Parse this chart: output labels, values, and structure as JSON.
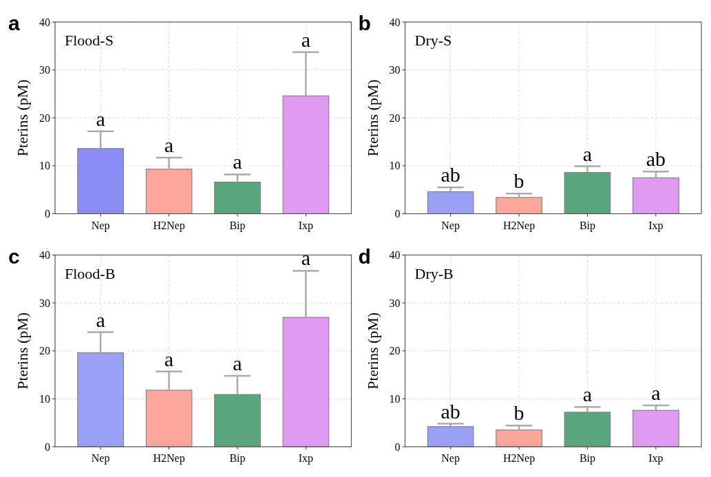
{
  "chart_data": [
    {
      "type": "bar",
      "title": "Flood-S",
      "ylabel": "Pterins (pM)",
      "categories": [
        "Nep",
        "H2Nep",
        "Bip",
        "Ixp"
      ],
      "values": [
        13.6,
        9.3,
        6.6,
        24.6
      ],
      "colors": [
        "#8c8cf5",
        "#fca59a",
        "#5aa67c",
        "#e09bf0"
      ],
      "errors": [
        [
          13.6,
          17.2
        ],
        [
          9.3,
          11.7
        ],
        [
          6.6,
          8.2
        ],
        [
          24.6,
          33.7
        ]
      ],
      "ylim": [
        0,
        40
      ],
      "yticks": [
        0,
        10,
        20,
        30,
        40
      ],
      "grid": true,
      "annotations": [
        "a",
        {
          "text": "a",
          "x": "Nep",
          "y": 17.2
        },
        {
          "text": "a",
          "x": "H2Nep",
          "y": 11.7
        },
        {
          "text": "a",
          "x": "Bip",
          "y": 8.2
        },
        {
          "text": "a",
          "x": "Ixp",
          "y": 33.7
        }
      ]
    },
    {
      "type": "bar",
      "title": "Dry-S",
      "ylabel": "Pterins (pM)",
      "categories": [
        "Nep",
        "H2Nep",
        "Bip",
        "Ixp"
      ],
      "values": [
        4.6,
        3.4,
        8.6,
        7.5
      ],
      "colors": [
        "#99a0f5",
        "#fca59a",
        "#5aa67c",
        "#e09bf0"
      ],
      "errors": [
        [
          4.6,
          5.5
        ],
        [
          3.4,
          4.2
        ],
        [
          8.6,
          9.9
        ],
        [
          7.5,
          8.8
        ]
      ],
      "ylim": [
        0,
        40
      ],
      "yticks": [
        0,
        10,
        20,
        30,
        40
      ],
      "grid": true,
      "annotations": [
        "b",
        {
          "text": "ab",
          "x": "Nep",
          "y": 5.5
        },
        {
          "text": "b",
          "x": "H2Nep",
          "y": 4.2
        },
        {
          "text": "a",
          "x": "Bip",
          "y": 9.9
        },
        {
          "text": "ab",
          "x": "Ixp",
          "y": 8.8
        }
      ]
    },
    {
      "type": "bar",
      "title": "Flood-B",
      "ylabel": "Pterins (pM)",
      "categories": [
        "Nep",
        "H2Nep",
        "Bip",
        "Ixp"
      ],
      "values": [
        19.6,
        11.8,
        10.9,
        27.0
      ],
      "colors": [
        "#99a0f5",
        "#fca59a",
        "#5aa67c",
        "#e09bf0"
      ],
      "errors": [
        [
          19.6,
          23.9
        ],
        [
          11.8,
          15.7
        ],
        [
          10.9,
          14.8
        ],
        [
          27.0,
          36.7
        ]
      ],
      "ylim": [
        0,
        40
      ],
      "yticks": [
        0,
        10,
        20,
        30,
        40
      ],
      "grid": true,
      "annotations": [
        "c",
        {
          "text": "a",
          "x": "Nep",
          "y": 23.9
        },
        {
          "text": "a",
          "x": "H2Nep",
          "y": 15.7
        },
        {
          "text": "a",
          "x": "Bip",
          "y": 14.8
        },
        {
          "text": "a",
          "x": "Ixp",
          "y": 36.7
        }
      ]
    },
    {
      "type": "bar",
      "title": "Dry-B",
      "ylabel": "Pterins (pM)",
      "categories": [
        "Nep",
        "H2Nep",
        "Bip",
        "Ixp"
      ],
      "values": [
        4.2,
        3.5,
        7.2,
        7.6
      ],
      "colors": [
        "#99a0f5",
        "#fca59a",
        "#5aa67c",
        "#e09bf0"
      ],
      "errors": [
        [
          4.2,
          4.8
        ],
        [
          3.5,
          4.4
        ],
        [
          7.2,
          8.3
        ],
        [
          7.6,
          8.6
        ]
      ],
      "ylim": [
        0,
        40
      ],
      "yticks": [
        0,
        10,
        20,
        30,
        40
      ],
      "grid": true,
      "annotations": [
        "d",
        {
          "text": "ab",
          "x": "Nep",
          "y": 4.8
        },
        {
          "text": "b",
          "x": "H2Nep",
          "y": 4.4
        },
        {
          "text": "a",
          "x": "Bip",
          "y": 8.3
        },
        {
          "text": "a",
          "x": "Ixp",
          "y": 8.6
        }
      ]
    }
  ]
}
